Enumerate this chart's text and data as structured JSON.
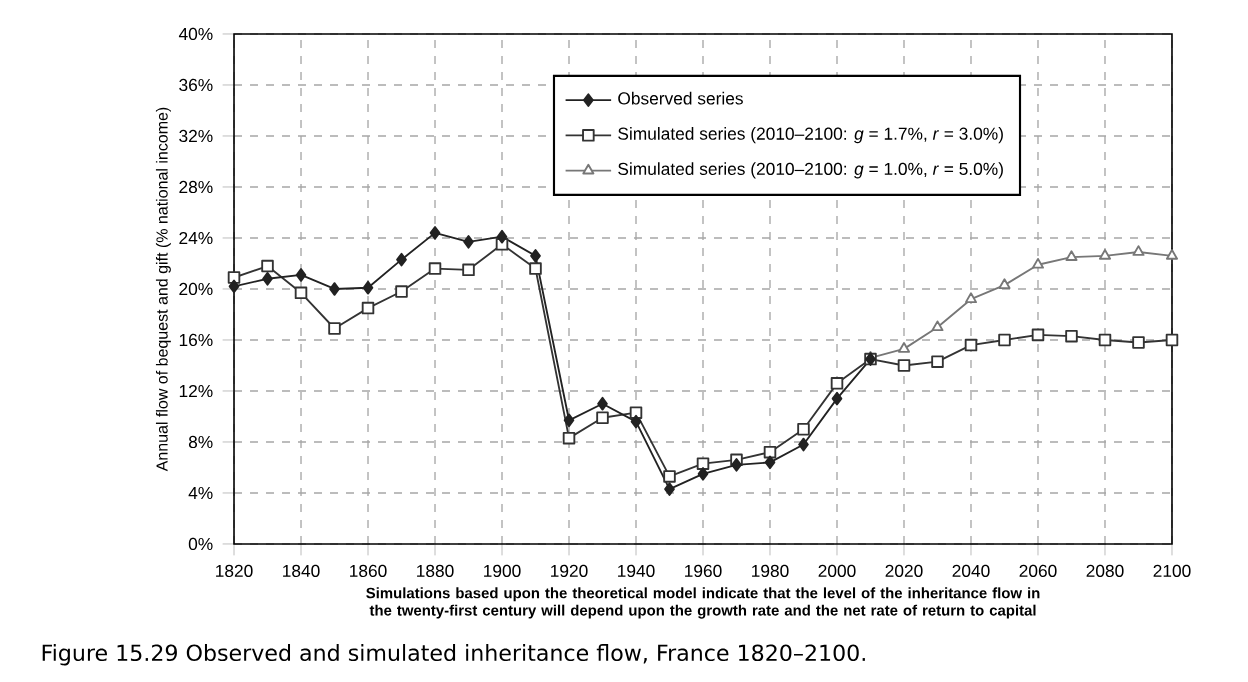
{
  "chart_data": {
    "type": "line",
    "title": "Figure 15.29  Observed and simulated inheritance flow, France 1820–2100.",
    "xlabel": "Simulations based upon the theoretical model indicate that the level of the inheritance flow in the twenty-first century will depend upon the growth rate and the net rate of return to capital",
    "ylabel": "Annual flow of bequest and  gift (% national income)",
    "xlim": [
      1820,
      2100
    ],
    "xticks": [
      1820,
      1840,
      1860,
      1880,
      1900,
      1920,
      1940,
      1960,
      1980,
      2000,
      2020,
      2040,
      2060,
      2080,
      2100
    ],
    "ylim": [
      0,
      40
    ],
    "yticks": [
      {
        "value": 0,
        "label": "0%"
      },
      {
        "value": 4,
        "label": "4%"
      },
      {
        "value": 8,
        "label": "8%"
      },
      {
        "value": 12,
        "label": "12%"
      },
      {
        "value": 16,
        "label": "16%"
      },
      {
        "value": 20,
        "label": "20%"
      },
      {
        "value": 24,
        "label": "24%"
      },
      {
        "value": 28,
        "label": "28%"
      },
      {
        "value": 32,
        "label": "32%"
      },
      {
        "value": 36,
        "label": "36%"
      },
      {
        "value": 40,
        "label": "40%"
      }
    ],
    "grid": true,
    "legend": "top right",
    "line_style": "solid",
    "series": [
      {
        "name": "Observed series",
        "color": "#222222",
        "marker": "diamond",
        "x": [
          1820,
          1830,
          1840,
          1850,
          1860,
          1870,
          1880,
          1890,
          1900,
          1910,
          1920,
          1930,
          1940,
          1950,
          1960,
          1970,
          1980,
          1990,
          2000,
          2010
        ],
        "values": [
          20.2,
          20.8,
          21.1,
          20.0,
          20.1,
          22.3,
          24.4,
          23.7,
          24.1,
          22.6,
          9.7,
          11.0,
          9.6,
          4.3,
          5.5,
          6.2,
          6.4,
          7.8,
          11.4,
          14.5
        ]
      },
      {
        "name": "Simulated series (2010–2100: *g* = 1.7%, *r* = 3.0%)",
        "color": "#333333",
        "marker": "square",
        "x": [
          1820,
          1830,
          1840,
          1850,
          1860,
          1870,
          1880,
          1890,
          1900,
          1910,
          1920,
          1930,
          1940,
          1950,
          1960,
          1970,
          1980,
          1990,
          2000,
          2010,
          2020,
          2030,
          2040,
          2050,
          2060,
          2070,
          2080,
          2090,
          2100
        ],
        "values": [
          20.9,
          21.8,
          19.7,
          16.9,
          18.5,
          19.8,
          21.6,
          21.5,
          23.5,
          21.6,
          8.3,
          9.9,
          10.3,
          5.3,
          6.3,
          6.6,
          7.2,
          9.0,
          12.6,
          14.5,
          14.0,
          14.3,
          15.6,
          16.0,
          16.4,
          16.3,
          16.0,
          15.8,
          16.0
        ]
      },
      {
        "name": "Simulated series (2010–2100: *g* = 1.0%, *r* = 5.0%)",
        "color": "#777777",
        "marker": "triangle",
        "x": [
          2010,
          2020,
          2030,
          2040,
          2050,
          2060,
          2070,
          2080,
          2090,
          2100
        ],
        "values": [
          14.6,
          15.3,
          17.0,
          19.2,
          20.3,
          21.9,
          22.5,
          22.6,
          22.9,
          22.6
        ]
      }
    ]
  }
}
